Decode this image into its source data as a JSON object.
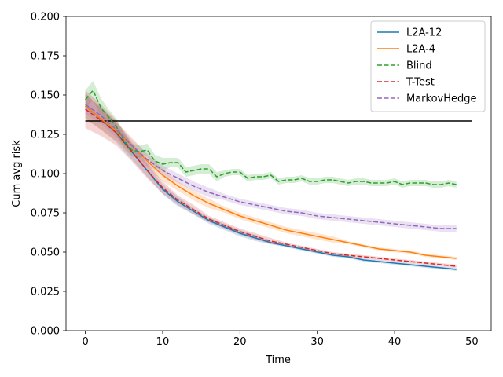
{
  "chart_data": {
    "type": "line",
    "title": "",
    "xlabel": "Time",
    "ylabel": "Cum avg risk",
    "xlim": [
      -2.5,
      52.5
    ],
    "ylim": [
      0.0,
      0.2
    ],
    "x_ticks": [
      0,
      10,
      20,
      30,
      40,
      50
    ],
    "x_tick_labels": [
      "0",
      "10",
      "20",
      "30",
      "40",
      "50"
    ],
    "y_ticks": [
      0.0,
      0.025,
      0.05,
      0.075,
      0.1,
      0.125,
      0.15,
      0.175,
      0.2
    ],
    "y_tick_labels": [
      "0.000",
      "0.025",
      "0.050",
      "0.075",
      "0.100",
      "0.125",
      "0.150",
      "0.175",
      "0.200"
    ],
    "grid": false,
    "legend_position": "top-right",
    "reference_line": {
      "y": 0.1335,
      "x_range": [
        0,
        50
      ],
      "color": "#000000"
    },
    "series": [
      {
        "name": "L2A-12",
        "color": "#1f77b4",
        "style": "solid",
        "x": [
          0,
          2,
          4,
          6,
          8,
          10,
          12,
          14,
          16,
          18,
          20,
          22,
          24,
          26,
          28,
          30,
          32,
          34,
          36,
          38,
          40,
          42,
          44,
          46,
          48
        ],
        "y": [
          0.143,
          0.135,
          0.126,
          0.114,
          0.102,
          0.09,
          0.082,
          0.076,
          0.07,
          0.066,
          0.062,
          0.059,
          0.056,
          0.054,
          0.052,
          0.05,
          0.048,
          0.047,
          0.045,
          0.044,
          0.043,
          0.042,
          0.041,
          0.04,
          0.039
        ],
        "band": [
          0.008,
          0.007,
          0.006,
          0.005,
          0.004,
          0.003,
          0.003,
          0.002,
          0.002,
          0.002,
          0.002,
          0.002,
          0.001,
          0.001,
          0.001,
          0.001,
          0.001,
          0.001,
          0.001,
          0.001,
          0.001,
          0.001,
          0.001,
          0.001,
          0.001
        ]
      },
      {
        "name": "L2A-4",
        "color": "#ff7f0e",
        "style": "solid",
        "x": [
          0,
          2,
          4,
          6,
          8,
          10,
          12,
          14,
          16,
          18,
          20,
          22,
          24,
          26,
          28,
          30,
          32,
          34,
          36,
          38,
          40,
          42,
          44,
          46,
          48
        ],
        "y": [
          0.143,
          0.135,
          0.127,
          0.118,
          0.108,
          0.099,
          0.092,
          0.086,
          0.081,
          0.077,
          0.073,
          0.07,
          0.067,
          0.064,
          0.062,
          0.06,
          0.058,
          0.056,
          0.054,
          0.052,
          0.051,
          0.05,
          0.048,
          0.047,
          0.046
        ],
        "band": [
          0.008,
          0.007,
          0.006,
          0.005,
          0.004,
          0.004,
          0.003,
          0.003,
          0.003,
          0.002,
          0.002,
          0.002,
          0.002,
          0.002,
          0.002,
          0.002,
          0.002,
          0.001,
          0.001,
          0.001,
          0.001,
          0.001,
          0.001,
          0.001,
          0.001
        ]
      },
      {
        "name": "Blind",
        "color": "#2ca02c",
        "style": "dashed",
        "x": [
          0,
          1,
          2,
          3,
          4,
          5,
          6,
          7,
          8,
          9,
          10,
          11,
          12,
          13,
          14,
          15,
          16,
          17,
          18,
          19,
          20,
          21,
          22,
          23,
          24,
          25,
          26,
          27,
          28,
          29,
          30,
          31,
          32,
          33,
          34,
          35,
          36,
          37,
          38,
          39,
          40,
          41,
          42,
          43,
          44,
          45,
          46,
          47,
          48
        ],
        "y": [
          0.147,
          0.153,
          0.142,
          0.136,
          0.13,
          0.121,
          0.115,
          0.114,
          0.115,
          0.108,
          0.106,
          0.107,
          0.107,
          0.101,
          0.102,
          0.103,
          0.103,
          0.098,
          0.1,
          0.101,
          0.101,
          0.097,
          0.098,
          0.098,
          0.099,
          0.095,
          0.096,
          0.096,
          0.097,
          0.095,
          0.095,
          0.096,
          0.096,
          0.095,
          0.094,
          0.095,
          0.095,
          0.094,
          0.094,
          0.094,
          0.095,
          0.093,
          0.094,
          0.094,
          0.094,
          0.093,
          0.093,
          0.094,
          0.093
        ],
        "band": [
          0.006,
          0.006,
          0.006,
          0.005,
          0.005,
          0.005,
          0.004,
          0.004,
          0.004,
          0.004,
          0.004,
          0.003,
          0.003,
          0.003,
          0.003,
          0.003,
          0.003,
          0.003,
          0.002,
          0.002,
          0.002,
          0.002,
          0.002,
          0.002,
          0.002,
          0.002,
          0.002,
          0.002,
          0.002,
          0.002,
          0.002,
          0.002,
          0.002,
          0.002,
          0.002,
          0.002,
          0.002,
          0.002,
          0.002,
          0.002,
          0.002,
          0.002,
          0.002,
          0.002,
          0.002,
          0.002,
          0.002,
          0.002,
          0.002
        ]
      },
      {
        "name": "T-Test",
        "color": "#d62728",
        "style": "dashed",
        "x": [
          0,
          2,
          4,
          6,
          8,
          10,
          12,
          14,
          16,
          18,
          20,
          22,
          24,
          26,
          28,
          30,
          32,
          34,
          36,
          38,
          40,
          42,
          44,
          46,
          48
        ],
        "y": [
          0.141,
          0.134,
          0.126,
          0.114,
          0.102,
          0.091,
          0.083,
          0.077,
          0.071,
          0.067,
          0.063,
          0.06,
          0.057,
          0.055,
          0.053,
          0.051,
          0.049,
          0.048,
          0.047,
          0.046,
          0.045,
          0.044,
          0.043,
          0.042,
          0.041
        ],
        "band": [
          0.012,
          0.01,
          0.008,
          0.006,
          0.005,
          0.004,
          0.003,
          0.003,
          0.002,
          0.002,
          0.002,
          0.002,
          0.002,
          0.001,
          0.001,
          0.001,
          0.001,
          0.001,
          0.001,
          0.001,
          0.001,
          0.001,
          0.001,
          0.001,
          0.001
        ]
      },
      {
        "name": "MarkovHedge",
        "color": "#9467bd",
        "style": "dashed",
        "x": [
          0,
          2,
          4,
          6,
          8,
          10,
          12,
          14,
          16,
          18,
          20,
          22,
          24,
          26,
          28,
          30,
          32,
          34,
          36,
          38,
          40,
          42,
          44,
          46,
          48
        ],
        "y": [
          0.144,
          0.137,
          0.128,
          0.118,
          0.109,
          0.102,
          0.097,
          0.092,
          0.088,
          0.085,
          0.082,
          0.08,
          0.078,
          0.076,
          0.075,
          0.073,
          0.072,
          0.071,
          0.07,
          0.069,
          0.068,
          0.067,
          0.066,
          0.065,
          0.065
        ],
        "band": [
          0.006,
          0.005,
          0.005,
          0.004,
          0.004,
          0.003,
          0.003,
          0.003,
          0.003,
          0.002,
          0.002,
          0.002,
          0.002,
          0.002,
          0.002,
          0.002,
          0.002,
          0.002,
          0.002,
          0.002,
          0.002,
          0.002,
          0.002,
          0.002,
          0.002
        ]
      }
    ]
  }
}
